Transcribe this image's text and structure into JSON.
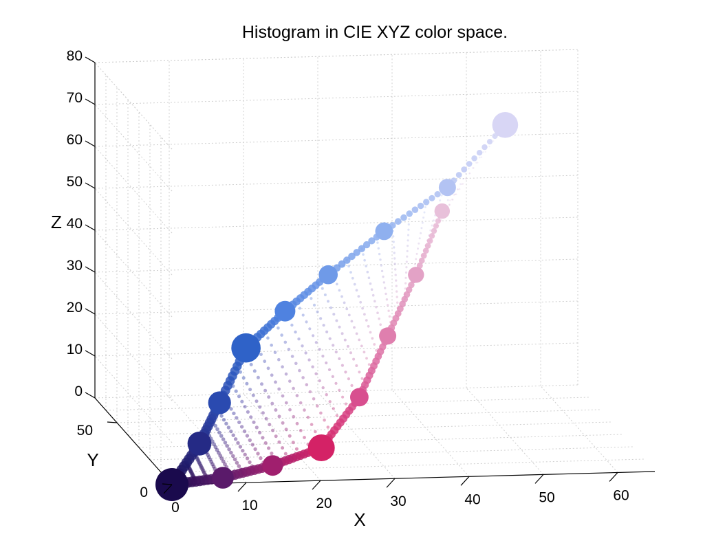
{
  "chart_data": {
    "type": "scatter3d",
    "title": "Histogram in CIE XYZ color space.",
    "xlabel": "X",
    "ylabel": "Y",
    "zlabel": "Z",
    "xlim": [
      0,
      65
    ],
    "ylim": [
      0,
      70
    ],
    "zlim": [
      0,
      80
    ],
    "xticks": [
      0,
      10,
      20,
      30,
      40,
      50,
      60
    ],
    "yticks": [
      0,
      50
    ],
    "zticks": [
      0,
      10,
      20,
      30,
      40,
      50,
      60,
      70,
      80
    ],
    "grid": true,
    "marker": "filled-circle-size-by-count",
    "series": [
      {
        "points": [
          {
            "x": 0,
            "y": 0,
            "z": 0,
            "color": "#1a0a4d",
            "count": 100
          },
          {
            "x": 4,
            "y": 2,
            "z": 9,
            "color": "#252a85",
            "count": 45
          },
          {
            "x": 7,
            "y": 4,
            "z": 18,
            "color": "#2a4ab0",
            "count": 40
          },
          {
            "x": 11,
            "y": 7,
            "z": 30,
            "color": "#2f62c8",
            "count": 75
          },
          {
            "x": 17,
            "y": 12,
            "z": 37,
            "color": "#4f82e0",
            "count": 30
          },
          {
            "x": 24,
            "y": 20,
            "z": 43,
            "color": "#6f9ae8",
            "count": 24
          },
          {
            "x": 33,
            "y": 30,
            "z": 50,
            "color": "#8fb0ef",
            "count": 20
          },
          {
            "x": 43,
            "y": 40,
            "z": 57,
            "color": "#b3c3f3",
            "count": 18
          },
          {
            "x": 53,
            "y": 55,
            "z": 67,
            "color": "#d8d6f5",
            "count": 55
          },
          {
            "x": 7,
            "y": 1,
            "z": 1,
            "color": "#5a1a6a",
            "count": 35
          },
          {
            "x": 14,
            "y": 3,
            "z": 3,
            "color": "#a01f6e",
            "count": 30
          },
          {
            "x": 21,
            "y": 6,
            "z": 6,
            "color": "#d42266",
            "count": 60
          },
          {
            "x": 27,
            "y": 12,
            "z": 16,
            "color": "#d84f8f",
            "count": 22
          },
          {
            "x": 32,
            "y": 20,
            "z": 28,
            "color": "#df7fae",
            "count": 18
          },
          {
            "x": 37,
            "y": 28,
            "z": 40,
            "color": "#e3a2c6",
            "count": 15
          },
          {
            "x": 42,
            "y": 38,
            "z": 52,
            "color": "#e8c0da",
            "count": 13
          }
        ]
      }
    ]
  }
}
